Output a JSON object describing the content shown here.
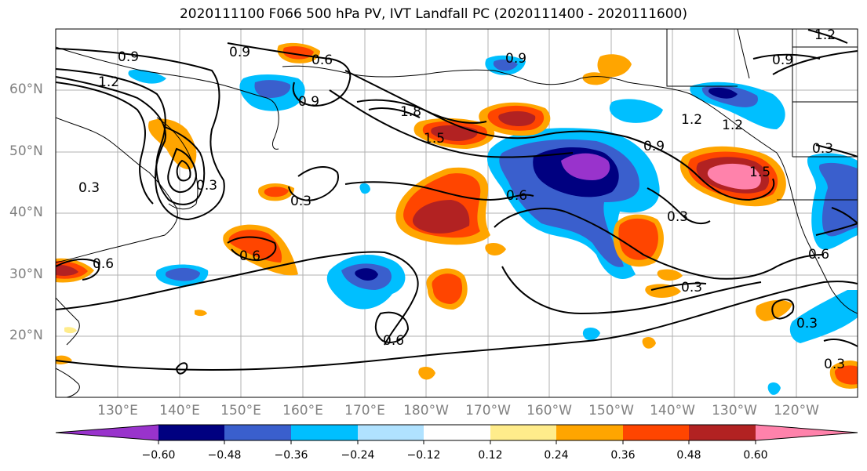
{
  "title": "2020111100 F066 500 hPa PV, IVT Landfall PC (2020111400 - 2020111600)",
  "map": {
    "lat_labels": [
      "60°N",
      "50°N",
      "40°N",
      "30°N",
      "20°N"
    ],
    "lon_labels": [
      "130°E",
      "140°E",
      "150°E",
      "160°E",
      "170°E",
      "180°W",
      "170°W",
      "160°W",
      "150°W",
      "140°W",
      "130°W",
      "120°W"
    ],
    "contour_labels": [
      "0.9",
      "0.9",
      "0.6",
      "1.2",
      "0.9",
      "0.9",
      "1.2",
      "0.3",
      "0.3",
      "0.6",
      "0.3",
      "0.6",
      "0.9",
      "1.8",
      "1.5",
      "0.6",
      "0.3",
      "0.9",
      "1.2",
      "1.5",
      "0.3",
      "0.3",
      "0.6",
      "0.3",
      "0.3",
      "1.2",
      "0.6"
    ]
  },
  "colorbar": {
    "colors": [
      "#9933cc",
      "#000080",
      "#3a5fcd",
      "#00bfff",
      "#b0e2ff",
      "#ffffff",
      "#ffec8b",
      "#ffa500",
      "#ff4500",
      "#b22222",
      "#ff82ab"
    ],
    "tick_labels": [
      "−0.60",
      "−0.48",
      "−0.36",
      "−0.24",
      "−0.12",
      "0.12",
      "0.24",
      "0.36",
      "0.48",
      "0.60"
    ]
  }
}
